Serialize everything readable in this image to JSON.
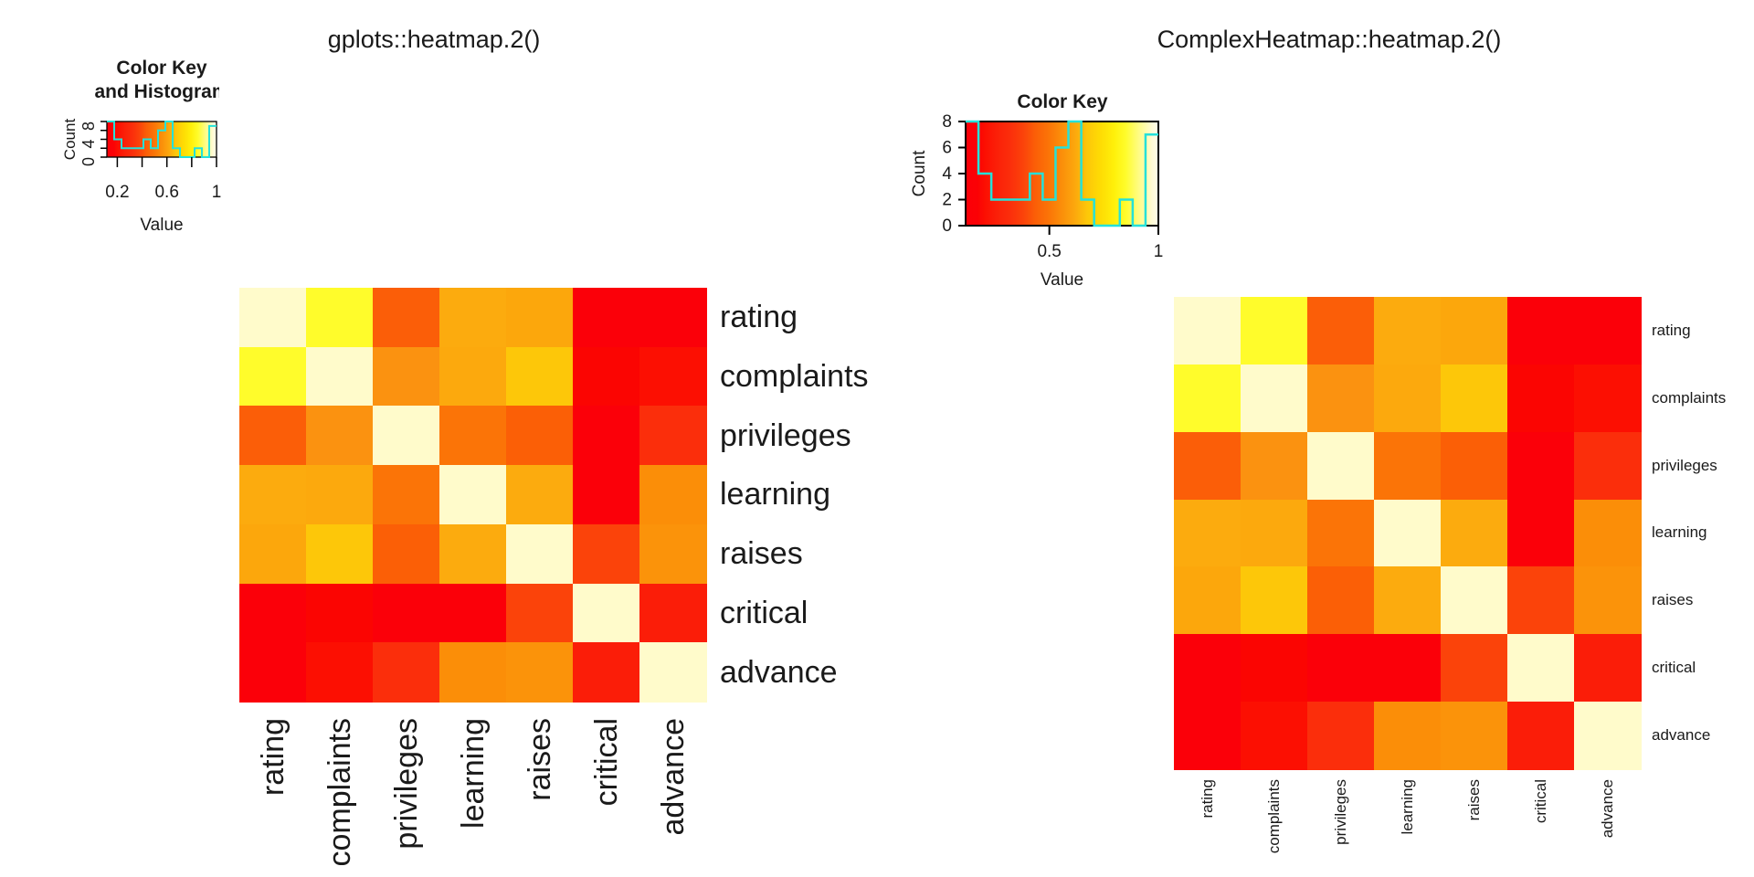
{
  "panels": {
    "left": {
      "title": "gplots::heatmap.2()",
      "key": {
        "title_line1": "Color Key",
        "title_line2": "and Histogram",
        "xlabel": "Value",
        "ylabel": "Count",
        "yticks": [
          {
            "value": 0,
            "label": "0"
          },
          {
            "value": 2,
            "label": ""
          },
          {
            "value": 4,
            "label": "4"
          },
          {
            "value": 6,
            "label": ""
          },
          {
            "value": 8,
            "label": "8"
          }
        ],
        "xticks": [
          {
            "value": 0.2,
            "label": "0.2"
          },
          {
            "value": 0.4,
            "label": ""
          },
          {
            "value": 0.6,
            "label": "0.6"
          },
          {
            "value": 0.8,
            "label": ""
          },
          {
            "value": 1,
            "label": "1"
          }
        ]
      },
      "row_labels": [
        "rating",
        "complaints",
        "privileges",
        "learning",
        "raises",
        "critical",
        "advance"
      ],
      "col_labels": [
        "rating",
        "complaints",
        "privileges",
        "learning",
        "raises",
        "critical",
        "advance"
      ]
    },
    "right": {
      "title": "ComplexHeatmap::heatmap.2()",
      "key": {
        "title": "Color Key",
        "xlabel": "Value",
        "ylabel": "Count",
        "yticks": [
          {
            "value": 0,
            "label": "0"
          },
          {
            "value": 2,
            "label": "2"
          },
          {
            "value": 4,
            "label": "4"
          },
          {
            "value": 6,
            "label": "6"
          },
          {
            "value": 8,
            "label": "8"
          }
        ],
        "xticks": [
          {
            "value": 0.5,
            "label": "0.5"
          },
          {
            "value": 1,
            "label": "1"
          }
        ]
      },
      "row_labels": [
        "rating",
        "complaints",
        "privileges",
        "learning",
        "raises",
        "critical",
        "advance"
      ],
      "col_labels": [
        "rating",
        "complaints",
        "privileges",
        "learning",
        "raises",
        "critical",
        "advance"
      ]
    }
  },
  "chart_data": [
    {
      "type": "heatmap",
      "title": "gplots::heatmap.2()",
      "rows": [
        "rating",
        "complaints",
        "privileges",
        "learning",
        "raises",
        "critical",
        "advance"
      ],
      "cols": [
        "rating",
        "complaints",
        "privileges",
        "learning",
        "raises",
        "critical",
        "advance"
      ],
      "value_range": [
        0.116,
        1.0
      ],
      "matrix": [
        [
          1,
          0.825,
          0.426,
          0.624,
          0.59,
          0.156,
          0.155
        ],
        [
          0.825,
          1,
          0.558,
          0.597,
          0.669,
          0.188,
          0.225
        ],
        [
          0.426,
          0.558,
          1,
          0.493,
          0.445,
          0.147,
          0.343
        ],
        [
          0.624,
          0.597,
          0.493,
          1,
          0.64,
          0.116,
          0.532
        ],
        [
          0.59,
          0.669,
          0.445,
          0.64,
          1,
          0.377,
          0.574
        ],
        [
          0.156,
          0.188,
          0.147,
          0.116,
          0.377,
          1,
          0.283
        ],
        [
          0.155,
          0.225,
          0.343,
          0.532,
          0.574,
          0.283,
          1
        ]
      ]
    },
    {
      "type": "heatmap",
      "title": "ComplexHeatmap::heatmap.2()",
      "rows": [
        "rating",
        "complaints",
        "privileges",
        "learning",
        "raises",
        "critical",
        "advance"
      ],
      "cols": [
        "rating",
        "complaints",
        "privileges",
        "learning",
        "raises",
        "critical",
        "advance"
      ],
      "value_range": [
        0.116,
        1.0
      ],
      "matrix": [
        [
          1,
          0.825,
          0.426,
          0.624,
          0.59,
          0.156,
          0.155
        ],
        [
          0.825,
          1,
          0.558,
          0.597,
          0.669,
          0.188,
          0.225
        ],
        [
          0.426,
          0.558,
          1,
          0.493,
          0.445,
          0.147,
          0.343
        ],
        [
          0.624,
          0.597,
          0.493,
          1,
          0.64,
          0.116,
          0.532
        ],
        [
          0.59,
          0.669,
          0.445,
          0.64,
          1,
          0.377,
          0.574
        ],
        [
          0.156,
          0.188,
          0.147,
          0.116,
          0.377,
          1,
          0.283
        ],
        [
          0.155,
          0.225,
          0.343,
          0.532,
          0.574,
          0.283,
          1
        ]
      ]
    },
    {
      "type": "histogram",
      "title": "Color Key",
      "xlabel": "Value",
      "ylabel": "Count",
      "x_range": [
        0.116,
        1.0
      ],
      "n_bins": 15,
      "counts": [
        8,
        4,
        2,
        2,
        2,
        4,
        2,
        6,
        8,
        2,
        0,
        0,
        2,
        0,
        7
      ],
      "ylim": [
        0,
        8
      ]
    }
  ],
  "colors": {
    "hist_line": "#25E1D9",
    "axis": "#000000",
    "text": "#1a1a1a",
    "value_colors": {
      "1": "#FFFBCB",
      "0.825": "#FFFC2B",
      "0.669": "#FDC709",
      "0.64": "#FCAB0E",
      "0.624": "#FCAB0E",
      "0.597": "#FCA90D",
      "0.59": "#FCA70C",
      "0.574": "#FB930A",
      "0.558": "#FB9210",
      "0.532": "#FB8E08",
      "0.493": "#FB7407",
      "0.445": "#FB5F06",
      "0.426": "#FB5E08",
      "0.377": "#FB430A",
      "0.343": "#FB2E0B",
      "0.283": "#FB1D08",
      "0.225": "#FC0F02",
      "0.188": "#FB0502",
      "0.156": "#FB0009",
      "0.155": "#FB0009",
      "0.147": "#FB0009",
      "0.116": "#FB0009"
    },
    "gradient_stops": [
      {
        "p": 0,
        "c": "#FB0009"
      },
      {
        "p": 0.06,
        "c": "#FB0105"
      },
      {
        "p": 0.1,
        "c": "#FC0F02"
      },
      {
        "p": 0.16,
        "c": "#FB1F08"
      },
      {
        "p": 0.23,
        "c": "#FB2E0B"
      },
      {
        "p": 0.3,
        "c": "#FB430A"
      },
      {
        "p": 0.36,
        "c": "#FB5E07"
      },
      {
        "p": 0.43,
        "c": "#FB7407"
      },
      {
        "p": 0.5,
        "c": "#FB8F0A"
      },
      {
        "p": 0.57,
        "c": "#FCA90D"
      },
      {
        "p": 0.63,
        "c": "#FDC709"
      },
      {
        "p": 0.7,
        "c": "#FEDC04"
      },
      {
        "p": 0.77,
        "c": "#FFF00A"
      },
      {
        "p": 0.83,
        "c": "#FFFC2B"
      },
      {
        "p": 0.9,
        "c": "#FFFC86"
      },
      {
        "p": 0.97,
        "c": "#FFFBD8"
      },
      {
        "p": 1,
        "c": "#FFFDE8"
      }
    ]
  }
}
